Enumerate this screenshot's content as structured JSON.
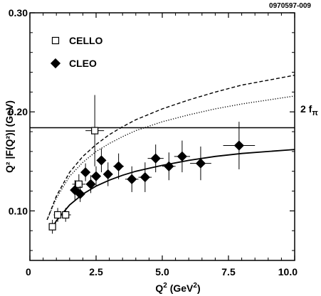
{
  "figure_id": "0970597-009",
  "chart_data": {
    "type": "scatter",
    "title": "",
    "xlabel": "Q",
    "xlabel_sup": "2",
    "xlabel_units": " (GeV",
    "xlabel_units_sup": "2",
    "xlabel_end": ")",
    "ylabel": "Q² |F(Q²)| (GeV)",
    "xlim": [
      0,
      10
    ],
    "ylim": [
      0.05,
      0.3
    ],
    "x_ticks": [
      {
        "value": 0,
        "label": "0"
      },
      {
        "value": 2.5,
        "label": "2.5"
      },
      {
        "value": 5,
        "label": "5.0"
      },
      {
        "value": 7.5,
        "label": "7.5"
      },
      {
        "value": 10,
        "label": "10.0"
      }
    ],
    "y_ticks": [
      {
        "value": 0.1,
        "label": "0.10"
      },
      {
        "value": 0.2,
        "label": "0.20"
      },
      {
        "value": 0.3,
        "label": "0.30"
      }
    ],
    "legend_position": "top-left",
    "reference_line": {
      "y": 0.184,
      "label": "2 f",
      "label_sub": "π"
    },
    "series": [
      {
        "name": "CELLO",
        "marker": "open-square",
        "points": [
          {
            "x": 0.85,
            "y": 0.084,
            "xerr": 0.1,
            "yerr": 0.007
          },
          {
            "x": 1.05,
            "y": 0.096,
            "xerr": 0.15,
            "yerr": 0.007
          },
          {
            "x": 1.35,
            "y": 0.096,
            "xerr": 0.2,
            "yerr": 0.007
          },
          {
            "x": 1.85,
            "y": 0.127,
            "xerr": 0.25,
            "yerr": 0.01
          },
          {
            "x": 2.45,
            "y": 0.181,
            "xerr": 0.35,
            "yerr": 0.036
          }
        ]
      },
      {
        "name": "CLEO",
        "marker": "filled-diamond",
        "points": [
          {
            "x": 1.7,
            "y": 0.121,
            "xerr": 0.1,
            "yerr": 0.01
          },
          {
            "x": 1.9,
            "y": 0.117,
            "xerr": 0.1,
            "yerr": 0.008
          },
          {
            "x": 2.1,
            "y": 0.139,
            "xerr": 0.1,
            "yerr": 0.009
          },
          {
            "x": 2.3,
            "y": 0.127,
            "xerr": 0.1,
            "yerr": 0.009
          },
          {
            "x": 2.5,
            "y": 0.135,
            "xerr": 0.1,
            "yerr": 0.01
          },
          {
            "x": 2.7,
            "y": 0.151,
            "xerr": 0.1,
            "yerr": 0.012
          },
          {
            "x": 2.95,
            "y": 0.137,
            "xerr": 0.15,
            "yerr": 0.012
          },
          {
            "x": 3.35,
            "y": 0.145,
            "xerr": 0.2,
            "yerr": 0.013
          },
          {
            "x": 3.85,
            "y": 0.132,
            "xerr": 0.25,
            "yerr": 0.013
          },
          {
            "x": 4.35,
            "y": 0.134,
            "xerr": 0.25,
            "yerr": 0.015
          },
          {
            "x": 4.75,
            "y": 0.153,
            "xerr": 0.3,
            "yerr": 0.014
          },
          {
            "x": 5.25,
            "y": 0.145,
            "xerr": 0.25,
            "yerr": 0.014
          },
          {
            "x": 5.75,
            "y": 0.155,
            "xerr": 0.3,
            "yerr": 0.016
          },
          {
            "x": 6.45,
            "y": 0.148,
            "xerr": 0.4,
            "yerr": 0.017
          },
          {
            "x": 7.9,
            "y": 0.166,
            "xerr": 0.6,
            "yerr": 0.024
          }
        ]
      }
    ],
    "curves": [
      {
        "style": "solid",
        "x": [
          0.8,
          1.0,
          1.5,
          2.0,
          2.5,
          3.0,
          3.5,
          4.0,
          4.5,
          5.0,
          6.0,
          7.0,
          8.0,
          9.0,
          10.0
        ],
        "y": [
          0.081,
          0.09,
          0.106,
          0.117,
          0.125,
          0.131,
          0.136,
          0.14,
          0.143,
          0.146,
          0.151,
          0.155,
          0.158,
          0.16,
          0.162
        ]
      },
      {
        "style": "dashed",
        "x": [
          0.65,
          1.0,
          1.5,
          2.0,
          2.5,
          3.0,
          3.5,
          4.0,
          5.0,
          6.0,
          7.0,
          8.0,
          9.0,
          10.0
        ],
        "y": [
          0.091,
          0.115,
          0.139,
          0.155,
          0.167,
          0.177,
          0.185,
          0.192,
          0.203,
          0.212,
          0.22,
          0.227,
          0.232,
          0.237
        ]
      },
      {
        "style": "dotted",
        "x": [
          0.65,
          1.0,
          1.5,
          2.0,
          2.5,
          3.0,
          3.5,
          4.0,
          5.0,
          6.0,
          7.0,
          8.0,
          9.0,
          10.0
        ],
        "y": [
          0.091,
          0.113,
          0.135,
          0.149,
          0.16,
          0.168,
          0.175,
          0.181,
          0.19,
          0.197,
          0.203,
          0.208,
          0.212,
          0.216
        ]
      }
    ]
  }
}
